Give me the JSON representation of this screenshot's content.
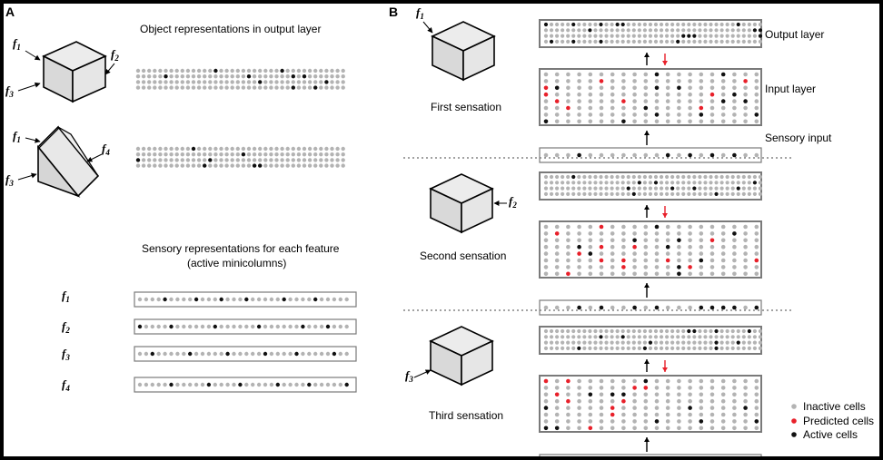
{
  "panel_a": {
    "letter": "A",
    "output_title": "Object representations in output layer",
    "sensory_title_line1": "Sensory representations for each feature",
    "sensory_title_line2": "(active minicolumns)",
    "feature_labels": [
      "f1",
      "f2",
      "f3",
      "f4"
    ],
    "cube_callouts": [
      "f1",
      "f2",
      "f3"
    ],
    "wedge_callouts": [
      "f1",
      "f4",
      "f3"
    ]
  },
  "panel_b": {
    "letter": "B",
    "sensations": [
      "First sensation",
      "Second sensation",
      "Third sensation"
    ],
    "layer_labels": [
      "Output layer",
      "Input layer",
      "Sensory input"
    ],
    "sensation_callouts": [
      "f1",
      "f2",
      "f3"
    ]
  },
  "legend": {
    "items": [
      {
        "label": "Inactive cells",
        "color": "#b3b3b3"
      },
      {
        "label": "Predicted cells",
        "color": "#e8202a"
      },
      {
        "label": "Active cells",
        "color": "#111111"
      }
    ]
  },
  "colors": {
    "inactive": "#b3b3b3",
    "predicted": "#e8202a",
    "active": "#111111",
    "box_stroke": "#7a7a7a",
    "cube_fill": "#e6e6e6"
  },
  "icons": [
    "cube-icon",
    "wedge-icon",
    "arrow-up-icon",
    "arrow-down-icon"
  ]
}
